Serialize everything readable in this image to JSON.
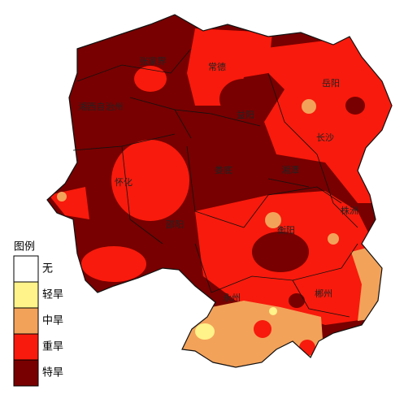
{
  "map": {
    "cities": [
      "张家界",
      "常德",
      "岳阳",
      "湘西自治州",
      "益阳",
      "长沙",
      "怀化",
      "娄底",
      "湘潭",
      "株洲",
      "邵阳",
      "衡阳",
      "永州",
      "郴州"
    ],
    "legend": {
      "title": "图例",
      "items": [
        {
          "label": "无",
          "color": "#ffffff"
        },
        {
          "label": "轻旱",
          "color": "#fff38a"
        },
        {
          "label": "中旱",
          "color": "#f3a25a"
        },
        {
          "label": "重旱",
          "color": "#f81a0c"
        },
        {
          "label": "特旱",
          "color": "#780000"
        }
      ]
    }
  }
}
